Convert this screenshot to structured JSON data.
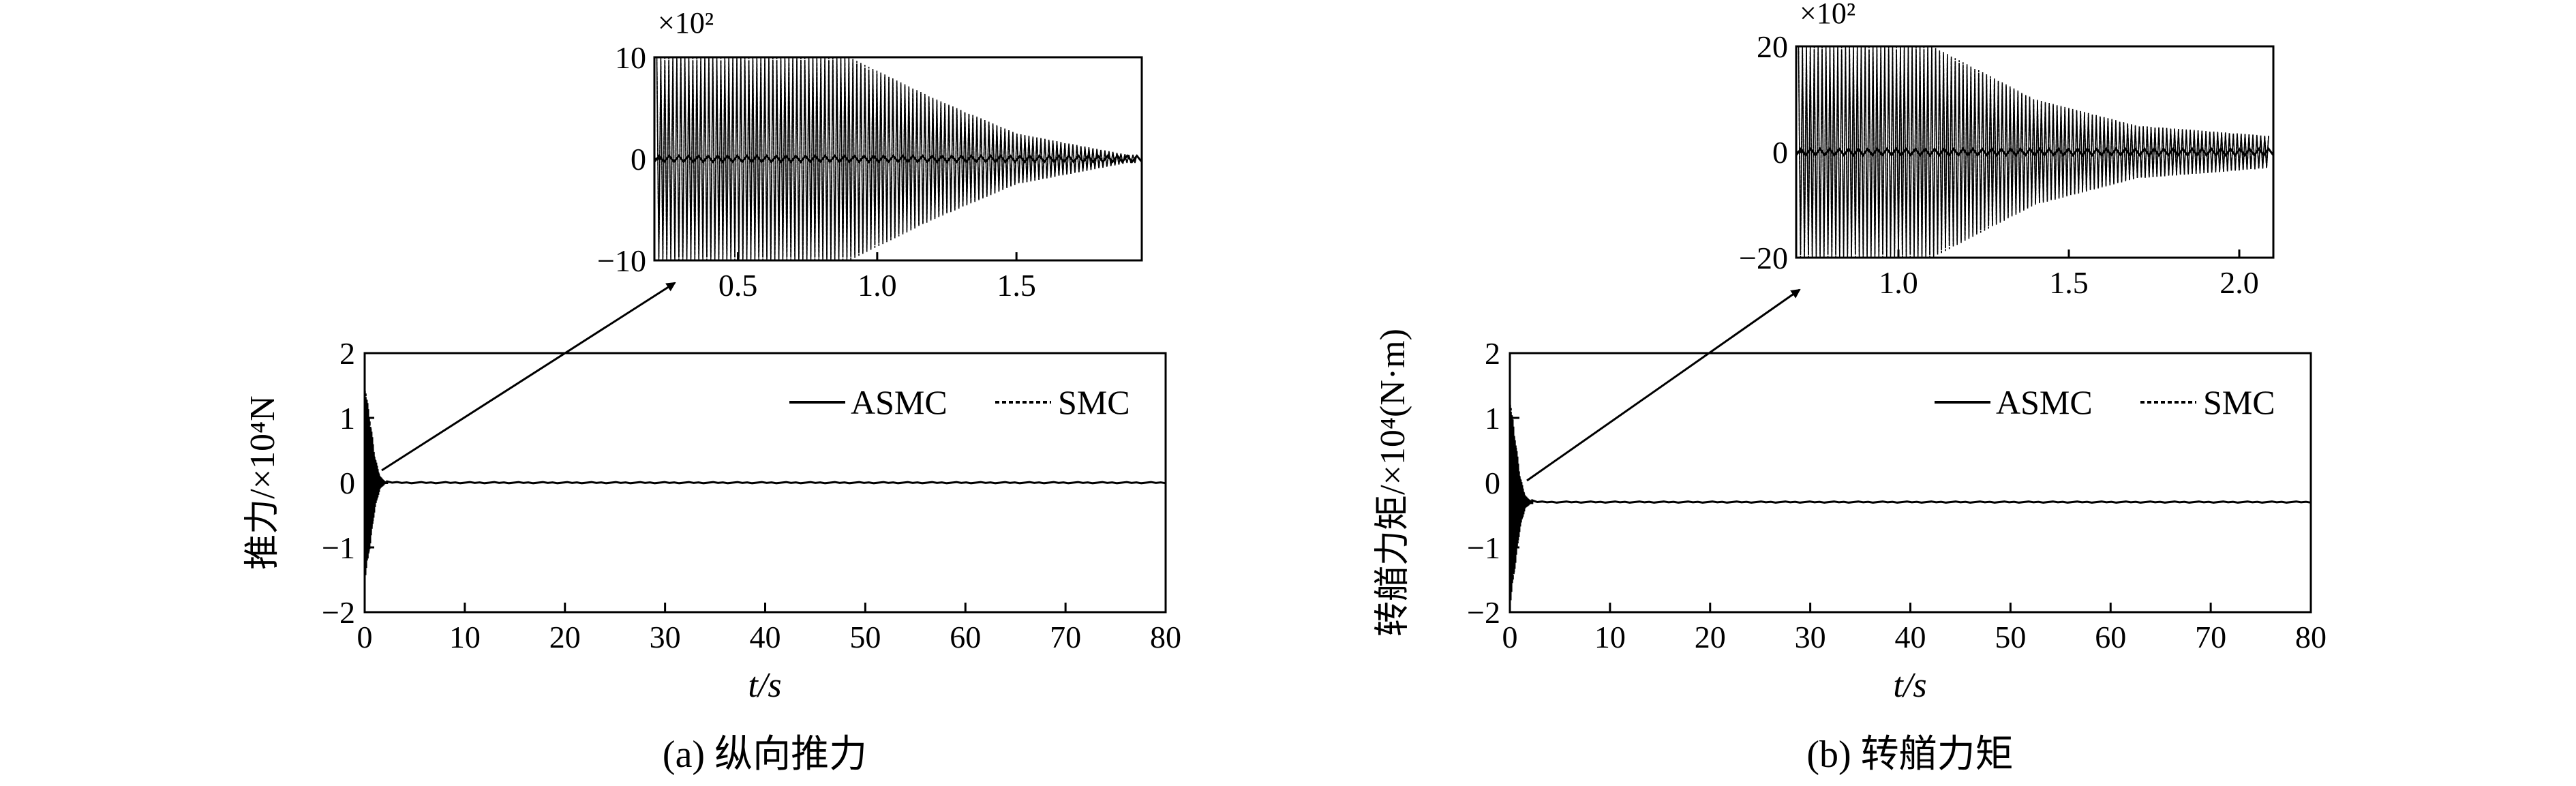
{
  "figure": {
    "panels": [
      {
        "caption": "(a) 纵向推力",
        "main": {
          "ylabel": "推力/×10⁴N",
          "xlabel": "t/s",
          "xlim": [
            0,
            80
          ],
          "ylim": [
            -2,
            2
          ],
          "xticks": [
            "0",
            "10",
            "20",
            "30",
            "40",
            "50",
            "60",
            "70",
            "80"
          ],
          "yticks": [
            "2",
            "1",
            "0",
            "−1",
            "−2"
          ],
          "legend": {
            "asmc": "ASMC",
            "smc": "SMC"
          }
        },
        "inset": {
          "multiplier": "×10²",
          "xlim": [
            0.2,
            1.95
          ],
          "ylim": [
            -10,
            10
          ],
          "xticks": [
            "0.5",
            "1.0",
            "1.5"
          ],
          "yticks": [
            "10",
            "0",
            "−10"
          ]
        }
      },
      {
        "caption": "(b) 转艏力矩",
        "main": {
          "ylabel": "转艏力矩/×10⁴(N·m)",
          "xlabel": "t/s",
          "xlim": [
            0,
            80
          ],
          "ylim": [
            -2,
            2
          ],
          "xticks": [
            "0",
            "10",
            "20",
            "30",
            "40",
            "50",
            "60",
            "70",
            "80"
          ],
          "yticks": [
            "2",
            "1",
            "0",
            "−1",
            "−2"
          ],
          "legend": {
            "asmc": "ASMC",
            "smc": "SMC"
          }
        },
        "inset": {
          "multiplier": "×10²",
          "xlim": [
            0.7,
            2.1
          ],
          "ylim": [
            -20,
            20
          ],
          "xticks": [
            "1.0",
            "1.5",
            "2.0"
          ],
          "yticks": [
            "20",
            "0",
            "−20"
          ]
        }
      }
    ]
  },
  "chart_data": [
    {
      "type": "line",
      "title": "",
      "xlabel": "t/s",
      "ylabel": "推力/×10⁴N",
      "xlim": [
        0,
        80
      ],
      "ylim": [
        -2,
        2
      ],
      "legend_position": "top-right",
      "series": [
        {
          "name": "ASMC",
          "style": "solid",
          "x": [
            0,
            0.5,
            1.0,
            1.5,
            2,
            80
          ],
          "y_envelope": [
            1.5,
            1.0,
            0.4,
            0.1,
            0.02,
            0.02
          ],
          "steady": 0
        },
        {
          "name": "SMC",
          "style": "dashed",
          "x": [
            0,
            0.5,
            1.0,
            1.5,
            2,
            80
          ],
          "y_envelope": [
            1.5,
            1.0,
            0.4,
            0.1,
            0.02,
            0.02
          ],
          "steady": 0
        }
      ],
      "inset": {
        "xlim": [
          0.2,
          1.95
        ],
        "ylim_scaled": [
          -10,
          10
        ],
        "scale": "×10²",
        "envelope_t": [
          0.2,
          0.9,
          1.2,
          1.5,
          1.9
        ],
        "envelope_amp": [
          10,
          10,
          6,
          2.5,
          0.4
        ]
      }
    },
    {
      "type": "line",
      "title": "",
      "xlabel": "t/s",
      "ylabel": "转艏力矩/×10⁴(N·m)",
      "xlim": [
        0,
        80
      ],
      "ylim": [
        -2,
        2
      ],
      "legend_position": "top-right",
      "series": [
        {
          "name": "ASMC",
          "style": "solid",
          "x": [
            0,
            0.5,
            1.0,
            1.5,
            2,
            80
          ],
          "y_envelope": [
            1.6,
            1.0,
            0.4,
            0.1,
            0.03,
            0.03
          ],
          "steady": -0.3
        },
        {
          "name": "SMC",
          "style": "dashed",
          "x": [
            0,
            0.5,
            1.0,
            1.5,
            2,
            80
          ],
          "y_envelope": [
            1.6,
            1.0,
            0.4,
            0.1,
            0.03,
            0.03
          ],
          "steady": -0.3
        }
      ],
      "inset": {
        "xlim": [
          0.7,
          2.1
        ],
        "ylim_scaled": [
          -20,
          20
        ],
        "scale": "×10²",
        "envelope_t": [
          0.7,
          1.1,
          1.4,
          1.7,
          2.1
        ],
        "envelope_amp": [
          20,
          20,
          10,
          5,
          3
        ]
      }
    }
  ]
}
